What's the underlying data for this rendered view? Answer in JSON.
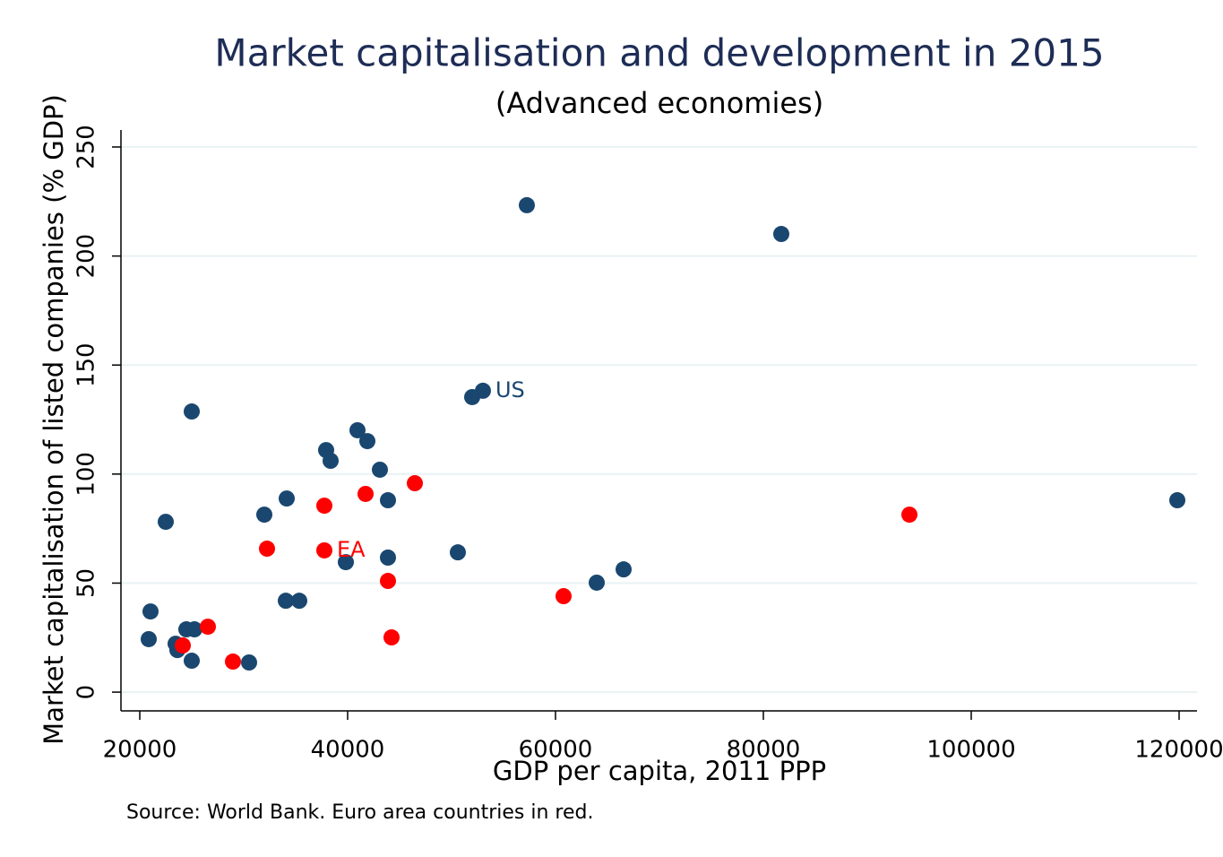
{
  "chart_data": {
    "type": "scatter",
    "title": "Market capitalisation and development in 2015",
    "subtitle": "(Advanced economies)",
    "x_label": "GDP per capita, 2011 PPP",
    "y_label": "Market capitalisation of listed companies (% GDP)",
    "note": "Source: World Bank. Euro area countries in red.",
    "xlim": [
      18190,
      121724
    ],
    "ylim": [
      -8.6,
      257.8
    ],
    "xticks": [
      20000,
      40000,
      60000,
      80000,
      100000,
      120000
    ],
    "yticks": [
      0,
      50,
      100,
      150,
      200,
      250
    ],
    "grid": true,
    "series": [
      {
        "color": "#1a476f",
        "x": [
          57241,
          81724,
          53017,
          51983,
          25000,
          40948,
          41897,
          37931,
          38362,
          43103,
          34138,
          43879,
          119828,
          31983,
          22500,
          50603,
          43879,
          39828,
          66552,
          63966,
          34052,
          35345,
          21034,
          24483,
          25259,
          20862,
          23448,
          23621,
          25000,
          30517
        ],
        "values": [
          223.3,
          210.1,
          138.2,
          135.3,
          128.7,
          120.1,
          115.1,
          111.0,
          106.1,
          102.0,
          88.8,
          88.0,
          88.0,
          81.4,
          78.1,
          64.1,
          61.7,
          59.6,
          56.3,
          50.2,
          41.9,
          41.9,
          37.0,
          28.8,
          28.8,
          24.3,
          22.2,
          19.3,
          14.4,
          13.6
        ]
      },
      {
        "color": "#ff0000",
        "x": [
          46466,
          41724,
          37759,
          94052,
          32241,
          37759,
          43879,
          60776,
          26552,
          24138,
          44224,
          28966
        ],
        "values": [
          95.8,
          90.9,
          85.5,
          81.4,
          65.8,
          65.0,
          51.0,
          44.0,
          30.0,
          21.4,
          25.1,
          14.0
        ]
      }
    ],
    "annotations": [
      {
        "text": "US",
        "x": 53017,
        "y": 138.2,
        "color": "#1a476f"
      },
      {
        "text": "EA",
        "x": 37759,
        "y": 65.0,
        "color": "#ff0000"
      }
    ]
  }
}
